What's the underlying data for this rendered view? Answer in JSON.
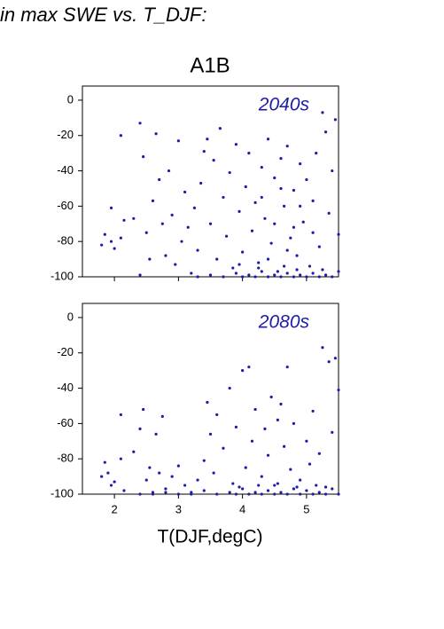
{
  "chart_data": [
    {
      "type": "scatter",
      "suptitle": "in max SWE vs. T_DJF:",
      "title": "A1B",
      "annotation": "2040s",
      "color": "#1c1ca8",
      "xlim": [
        1.5,
        5.5
      ],
      "xticks": [
        2,
        3,
        4,
        5
      ],
      "show_xtick_labels": false,
      "ylim": [
        -100,
        8
      ],
      "yticks": [
        0,
        -20,
        -40,
        -60,
        -80,
        -100
      ],
      "x": [
        1.8,
        1.85,
        1.95,
        2.0,
        1.95,
        2.1,
        2.1,
        2.15,
        2.3,
        2.4,
        2.45,
        2.4,
        2.5,
        2.55,
        2.6,
        2.65,
        2.7,
        2.75,
        2.8,
        2.85,
        2.9,
        2.95,
        3.0,
        3.05,
        3.1,
        3.15,
        3.2,
        3.25,
        3.3,
        3.35,
        3.4,
        3.45,
        3.5,
        3.55,
        3.6,
        3.65,
        3.7,
        3.75,
        3.8,
        3.85,
        3.9,
        3.95,
        4.0,
        4.05,
        4.1,
        4.15,
        4.2,
        4.25,
        4.3,
        4.35,
        4.4,
        4.45,
        4.5,
        4.55,
        4.6,
        4.65,
        4.7,
        4.75,
        4.8,
        4.85,
        4.9,
        4.95,
        5.0,
        5.05,
        5.1,
        5.15,
        5.2,
        5.25,
        5.3,
        5.35,
        5.4,
        5.45,
        5.5,
        3.3,
        3.5,
        3.7,
        3.9,
        4.0,
        4.1,
        4.2,
        4.3,
        4.4,
        4.5,
        4.6,
        4.7,
        4.8,
        4.9,
        5.0,
        5.1,
        5.2,
        5.3,
        5.4,
        5.5,
        4.25,
        4.65,
        5.25,
        3.95,
        4.85,
        4.3,
        4.5,
        4.7,
        4.9,
        5.1,
        4.4,
        4.6,
        4.8
      ],
      "values": [
        -82,
        -76,
        -80,
        -84,
        -61,
        -20,
        -78,
        -68,
        -67,
        -13,
        -32,
        -99,
        -75,
        -90,
        -57,
        -19,
        -45,
        -70,
        -88,
        -40,
        -65,
        -93,
        -23,
        -80,
        -52,
        -72,
        -98,
        -61,
        -85,
        -47,
        -29,
        -22,
        -70,
        -34,
        -90,
        -16,
        -55,
        -77,
        -41,
        -95,
        -25,
        -63,
        -86,
        -49,
        -30,
        -74,
        -58,
        -92,
        -38,
        -67,
        -22,
        -81,
        -44,
        -97,
        -33,
        -60,
        -26,
        -78,
        -51,
        -88,
        -36,
        -69,
        -45,
        -94,
        -57,
        -30,
        -83,
        -7,
        -18,
        -64,
        -40,
        -11,
        -76,
        -100,
        -99,
        -100,
        -98,
        -100,
        -99,
        -100,
        -97,
        -100,
        -99,
        -100,
        -98,
        -100,
        -99,
        -100,
        -98,
        -100,
        -99,
        -100,
        -97,
        -95,
        -94,
        -96,
        -93,
        -96,
        -55,
        -70,
        -85,
        -60,
        -75,
        -90,
        -50,
        -72
      ]
    },
    {
      "type": "scatter",
      "annotation": "2080s",
      "xlabel": "T(DJF,degC)",
      "color": "#1c1ca8",
      "xlim": [
        1.5,
        5.5
      ],
      "xticks": [
        2,
        3,
        4,
        5
      ],
      "show_xtick_labels": true,
      "ylim": [
        -100,
        8
      ],
      "yticks": [
        0,
        -20,
        -40,
        -60,
        -80,
        -100
      ],
      "x": [
        1.8,
        1.85,
        1.9,
        1.95,
        2.0,
        2.1,
        2.1,
        2.15,
        2.3,
        2.4,
        2.45,
        2.5,
        2.55,
        2.6,
        2.65,
        2.7,
        2.75,
        2.8,
        2.9,
        3.0,
        3.1,
        3.2,
        3.3,
        3.4,
        3.45,
        3.5,
        3.55,
        3.6,
        3.7,
        3.8,
        3.85,
        3.9,
        4.0,
        4.05,
        4.1,
        4.15,
        4.2,
        4.3,
        4.35,
        4.4,
        4.45,
        4.5,
        4.55,
        4.6,
        4.65,
        4.7,
        4.75,
        4.8,
        4.9,
        5.0,
        5.05,
        5.1,
        5.2,
        5.25,
        5.3,
        5.35,
        5.4,
        5.45,
        5.5,
        2.4,
        2.6,
        2.8,
        3.0,
        3.2,
        3.4,
        3.6,
        3.8,
        3.9,
        4.0,
        4.1,
        4.2,
        4.3,
        4.4,
        4.5,
        4.6,
        4.7,
        4.8,
        4.9,
        5.0,
        5.1,
        5.2,
        5.3,
        5.4,
        5.5,
        4.25,
        4.55,
        4.85,
        5.15,
        3.95
      ],
      "values": [
        -90,
        -82,
        -88,
        -95,
        -93,
        -55,
        -80,
        -98,
        -76,
        -63,
        -52,
        -92,
        -85,
        -99,
        -66,
        -88,
        -56,
        -97,
        -90,
        -84,
        -95,
        -99,
        -92,
        -81,
        -48,
        -66,
        -88,
        -55,
        -74,
        -40,
        -94,
        -62,
        -30,
        -85,
        -28,
        -70,
        -52,
        -90,
        -63,
        -78,
        -45,
        -95,
        -58,
        -49,
        -73,
        -28,
        -86,
        -60,
        -92,
        -70,
        -83,
        -53,
        -77,
        -17,
        -96,
        -25,
        -65,
        -23,
        -41,
        -100,
        -100,
        -99,
        -100,
        -100,
        -98,
        -100,
        -99,
        -100,
        -97,
        -100,
        -99,
        -100,
        -98,
        -100,
        -99,
        -100,
        -97,
        -100,
        -98,
        -100,
        -99,
        -100,
        -97,
        -100,
        -95,
        -94,
        -96,
        -95,
        -96
      ]
    }
  ]
}
